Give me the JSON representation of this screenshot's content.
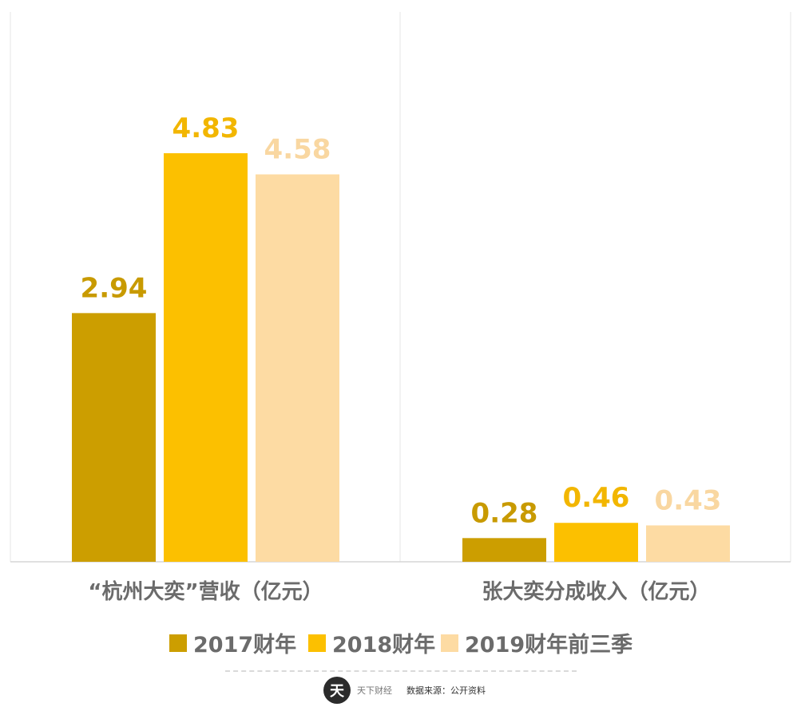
{
  "chart_data": {
    "type": "bar",
    "panels": [
      {
        "category": "“杭州大奕”营收（亿元）",
        "values": [
          2.94,
          4.83,
          4.58
        ],
        "labels": [
          "2.94",
          "4.83",
          "4.58"
        ],
        "ylim": [
          0,
          6.5
        ]
      },
      {
        "category": "张大奕分成收入（亿元）",
        "values": [
          0.28,
          0.46,
          0.43
        ],
        "labels": [
          "0.28",
          "0.46",
          "0.43"
        ],
        "ylim": [
          0,
          6.5
        ]
      }
    ],
    "series": [
      {
        "name": "2017财年",
        "color": "#cc9e00",
        "label_color": "#c89a00"
      },
      {
        "name": "2018财年",
        "color": "#fcc000",
        "label_color": "#f2b600"
      },
      {
        "name": "2019财年前三季",
        "color": "#fddba3",
        "label_color": "#f9d7a1"
      }
    ],
    "legend_position": "bottom",
    "grid": false
  },
  "footer": {
    "logo_icon": "天",
    "brand_name": "天下财经",
    "source": "数据来源：公开资料"
  }
}
